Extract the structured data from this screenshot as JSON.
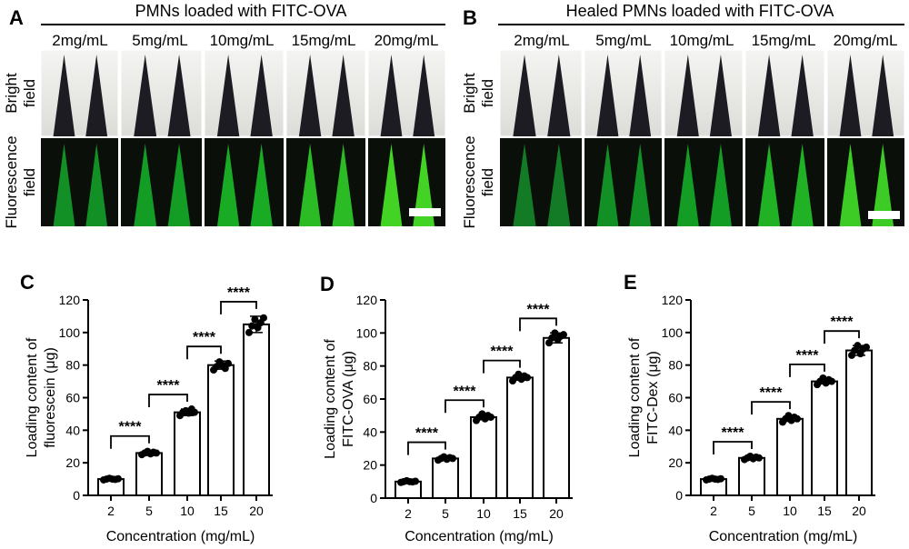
{
  "panels_top": [
    {
      "letter": "A",
      "title": "PMNs loaded with FITC-OVA",
      "concentrations": [
        "2mg/mL",
        "5mg/mL",
        "10mg/mL",
        "15mg/mL",
        "20mg/mL"
      ],
      "row_labels": [
        [
          "Bright",
          "field"
        ],
        [
          "Fluorescence",
          "field"
        ]
      ],
      "fluorescence_intensity": [
        0.45,
        0.55,
        0.65,
        0.78,
        0.95
      ]
    },
    {
      "letter": "B",
      "title": "Healed PMNs loaded with FITC-OVA",
      "concentrations": [
        "2mg/mL",
        "5mg/mL",
        "10mg/mL",
        "15mg/mL",
        "20mg/mL"
      ],
      "row_labels": [
        [
          "Bright",
          "field"
        ],
        [
          "Fluorescence",
          "field"
        ]
      ],
      "fluorescence_intensity": [
        0.3,
        0.45,
        0.55,
        0.7,
        0.9
      ]
    }
  ],
  "chart_data": [
    {
      "letter": "C",
      "type": "bar",
      "categories": [
        "2",
        "5",
        "10",
        "15",
        "20"
      ],
      "values": [
        10,
        26,
        51,
        80,
        105
      ],
      "errors": [
        1,
        1.5,
        2,
        2.5,
        5
      ],
      "points": [
        [
          9.5,
          10,
          10.5,
          10,
          9.8,
          10.2
        ],
        [
          25,
          26,
          27,
          25.5,
          26.5,
          26
        ],
        [
          49,
          51,
          52,
          50.5,
          53,
          51
        ],
        [
          77,
          79,
          82,
          80,
          78,
          81
        ],
        [
          100,
          104,
          108,
          103,
          106,
          109
        ]
      ],
      "xlabel": "Concentration (mg/mL)",
      "ylabel": [
        "Loading content of",
        "fluorescein (μg)"
      ],
      "ylim": [
        0,
        120
      ],
      "yticks": [
        "0",
        "20",
        "40",
        "60",
        "80",
        "100",
        "120"
      ],
      "sig_label": "****"
    },
    {
      "letter": "D",
      "type": "bar",
      "categories": [
        "2",
        "5",
        "10",
        "15",
        "20"
      ],
      "values": [
        10,
        24,
        49,
        73,
        97
      ],
      "errors": [
        0.8,
        1,
        1.5,
        1.5,
        3
      ],
      "points": [
        [
          9.5,
          10,
          10.5,
          10,
          9.8,
          10.2
        ],
        [
          23,
          24,
          25,
          23.5,
          24.5,
          24
        ],
        [
          47,
          49,
          51,
          48,
          50,
          49
        ],
        [
          71,
          73,
          75,
          72,
          74,
          73
        ],
        [
          94,
          97,
          100,
          96,
          98,
          99
        ]
      ],
      "xlabel": "Concentration (mg/mL)",
      "ylabel": [
        "Loading content of",
        "FITC-OVA (μg)"
      ],
      "ylim": [
        0,
        120
      ],
      "yticks": [
        "0",
        "20",
        "40",
        "60",
        "80",
        "100",
        "120"
      ],
      "sig_label": "****"
    },
    {
      "letter": "E",
      "type": "bar",
      "categories": [
        "2",
        "5",
        "10",
        "15",
        "20"
      ],
      "values": [
        10,
        23,
        47,
        70,
        89
      ],
      "errors": [
        0.8,
        1,
        1.5,
        1.5,
        3
      ],
      "points": [
        [
          9.5,
          10,
          10.5,
          10,
          9.8,
          10.2
        ],
        [
          22,
          23,
          24,
          22.5,
          23.5,
          23
        ],
        [
          45,
          47,
          49,
          46,
          48,
          47
        ],
        [
          68,
          70,
          72,
          69,
          71,
          70
        ],
        [
          86,
          89,
          92,
          87,
          90,
          91
        ]
      ],
      "xlabel": "Concentration (mg/mL)",
      "ylabel": [
        "Loading content of",
        "FITC-Dex (μg)"
      ],
      "ylim": [
        0,
        120
      ],
      "yticks": [
        "0",
        "20",
        "40",
        "60",
        "80",
        "100",
        "120"
      ],
      "sig_label": "****"
    }
  ]
}
